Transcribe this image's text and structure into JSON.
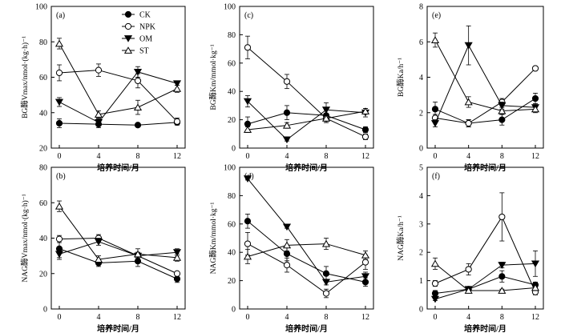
{
  "figure": {
    "xlabel": "培养时间/月",
    "legend": [
      "CK",
      "NPK",
      "OM",
      "ST"
    ]
  },
  "chart_data": [
    {
      "type": "line",
      "panel": "(a)",
      "ylabel": "BG酶Vmax/nmol·(kg·h)⁻¹",
      "x": [
        0,
        4,
        8,
        12
      ],
      "xticks": [
        "0",
        "4",
        "8",
        "12"
      ],
      "ylim": [
        20,
        100
      ],
      "yticks": [
        "20",
        "40",
        "60",
        "80",
        "100"
      ],
      "legend_position": "top-right",
      "series": [
        {
          "name": "CK",
          "values": [
            34,
            33.5,
            33,
            34.5
          ],
          "errors": [
            2.5,
            2,
            1,
            1
          ]
        },
        {
          "name": "NPK",
          "values": [
            62.5,
            64,
            58,
            35
          ],
          "errors": [
            4.5,
            3.5,
            4,
            2
          ]
        },
        {
          "name": "OM",
          "values": [
            46,
            34.5,
            63,
            56.5
          ],
          "errors": [
            2.5,
            2,
            3,
            1
          ]
        },
        {
          "name": "ST",
          "values": [
            79,
            39,
            43,
            53.5
          ],
          "errors": [
            3,
            2,
            4,
            2
          ]
        }
      ]
    },
    {
      "type": "line",
      "panel": "(c)",
      "ylabel": "BG酶Km/mmol·kg⁻¹",
      "x": [
        0,
        4,
        8,
        12
      ],
      "xticks": [
        "0",
        "4",
        "8",
        "12"
      ],
      "ylim": [
        0,
        100
      ],
      "yticks": [
        "0",
        "20",
        "40",
        "60",
        "80",
        "100"
      ],
      "series": [
        {
          "name": "CK",
          "values": [
            17,
            25,
            23,
            13
          ],
          "errors": [
            5,
            5,
            4,
            2
          ]
        },
        {
          "name": "NPK",
          "values": [
            71,
            47,
            21,
            8
          ],
          "errors": [
            8,
            5,
            3,
            2
          ]
        },
        {
          "name": "OM",
          "values": [
            33,
            6,
            27,
            25
          ],
          "errors": [
            4,
            1,
            5,
            3
          ]
        },
        {
          "name": "ST",
          "values": [
            13,
            16,
            21,
            26
          ],
          "errors": [
            2,
            2,
            3,
            2
          ]
        }
      ]
    },
    {
      "type": "line",
      "panel": "(e)",
      "ylabel": "BG酶Ka/h⁻¹",
      "x": [
        0,
        4,
        8,
        12
      ],
      "xticks": [
        "0",
        "4",
        "8",
        "12"
      ],
      "ylim": [
        0,
        8
      ],
      "yticks": [
        "0",
        "2",
        "4",
        "6",
        "8"
      ],
      "series": [
        {
          "name": "CK",
          "values": [
            2.2,
            1.4,
            1.6,
            2.8
          ],
          "errors": [
            0.4,
            0.2,
            0.3,
            0.3
          ]
        },
        {
          "name": "NPK",
          "values": [
            1.7,
            1.4,
            2.6,
            4.5
          ],
          "errors": [
            0.2,
            0.2,
            0.2,
            0.1
          ]
        },
        {
          "name": "OM",
          "values": [
            1.4,
            5.8,
            2.4,
            2.3
          ],
          "errors": [
            0.2,
            1.1,
            0.2,
            0.2
          ]
        },
        {
          "name": "ST",
          "values": [
            6.1,
            2.6,
            2.1,
            2.2
          ],
          "errors": [
            0.4,
            0.3,
            0.2,
            0.2
          ]
        }
      ]
    },
    {
      "type": "line",
      "panel": "(b)",
      "ylabel": "NAG酶Vmax/nmol·(kg·h)⁻¹",
      "x": [
        0,
        4,
        8,
        12
      ],
      "xticks": [
        "0",
        "4",
        "8",
        "12"
      ],
      "ylim": [
        0,
        80
      ],
      "yticks": [
        "0",
        "20",
        "40",
        "60",
        "80"
      ],
      "series": [
        {
          "name": "CK",
          "values": [
            34,
            26,
            27,
            17
          ],
          "errors": [
            5,
            2,
            3,
            2
          ]
        },
        {
          "name": "NPK",
          "values": [
            39.5,
            40,
            30,
            20
          ],
          "errors": [
            2,
            2,
            2,
            1
          ]
        },
        {
          "name": "OM",
          "values": [
            31,
            38,
            30,
            32
          ],
          "errors": [
            3,
            2,
            2,
            2
          ]
        },
        {
          "name": "ST",
          "values": [
            58,
            28,
            31,
            29
          ],
          "errors": [
            3,
            2,
            3,
            2
          ]
        }
      ]
    },
    {
      "type": "line",
      "panel": "(d)",
      "ylabel": "NAG酶Km/mmol·kg⁻¹",
      "x": [
        0,
        4,
        8,
        12
      ],
      "xticks": [
        "0",
        "4",
        "8",
        "12"
      ],
      "ylim": [
        0,
        100
      ],
      "yticks": [
        "0",
        "20",
        "40",
        "60",
        "80",
        "100"
      ],
      "series": [
        {
          "name": "CK",
          "values": [
            62,
            39,
            25,
            19
          ],
          "errors": [
            5,
            5,
            5,
            3
          ]
        },
        {
          "name": "NPK",
          "values": [
            46,
            31,
            11,
            33
          ],
          "errors": [
            8,
            5,
            3,
            5
          ]
        },
        {
          "name": "OM",
          "values": [
            92,
            58,
            19,
            23
          ],
          "errors": [
            1,
            1,
            2,
            3
          ]
        },
        {
          "name": "ST",
          "values": [
            37,
            45,
            46,
            38
          ],
          "errors": [
            5,
            4,
            4,
            3
          ]
        }
      ]
    },
    {
      "type": "line",
      "panel": "(f)",
      "ylabel": "NAG酶Ka/h⁻¹",
      "x": [
        0,
        4,
        8,
        12
      ],
      "xticks": [
        "0",
        "4",
        "8",
        "12"
      ],
      "ylim": [
        0,
        5
      ],
      "yticks": [
        "0",
        "1",
        "2",
        "3",
        "4",
        "5"
      ],
      "series": [
        {
          "name": "CK",
          "values": [
            0.55,
            0.7,
            1.15,
            0.85
          ],
          "errors": [
            0.1,
            0.05,
            0.2,
            0.1
          ]
        },
        {
          "name": "NPK",
          "values": [
            0.9,
            1.4,
            3.25,
            0.6
          ],
          "errors": [
            0.1,
            0.2,
            0.85,
            0.1
          ]
        },
        {
          "name": "OM",
          "values": [
            0.35,
            0.7,
            1.55,
            1.6
          ],
          "errors": [
            0.05,
            0.05,
            0.1,
            0.45
          ]
        },
        {
          "name": "ST",
          "values": [
            1.6,
            0.65,
            0.65,
            0.75
          ],
          "errors": [
            0.2,
            0.05,
            0.05,
            0.1
          ]
        }
      ]
    }
  ]
}
